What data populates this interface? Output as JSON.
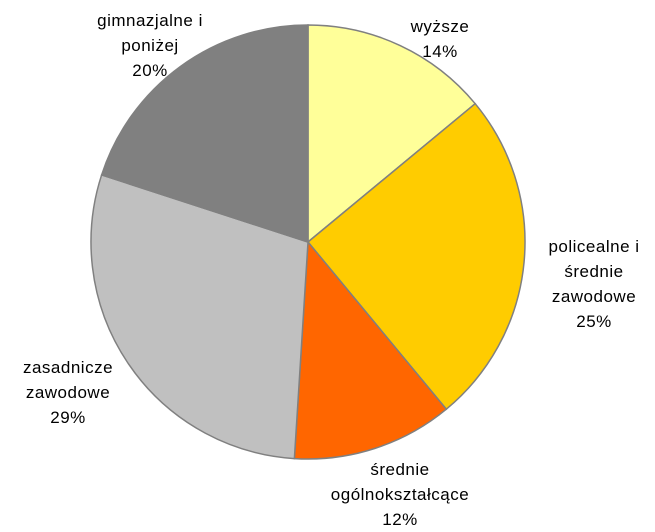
{
  "chart_data": {
    "type": "pie",
    "categories": [
      "wyższe",
      "policealne i średnie zawodowe",
      "średnie ogólnokształcące",
      "zasadnicze zawodowe",
      "gimnazjalne i poniżej"
    ],
    "values": [
      14,
      25,
      12,
      29,
      20
    ],
    "value_labels": [
      "14%",
      "25%",
      "12%",
      "29%",
      "20%"
    ],
    "colors": [
      "#ffff99",
      "#ffcc00",
      "#ff6600",
      "#c0c0c0",
      "#808080"
    ]
  }
}
